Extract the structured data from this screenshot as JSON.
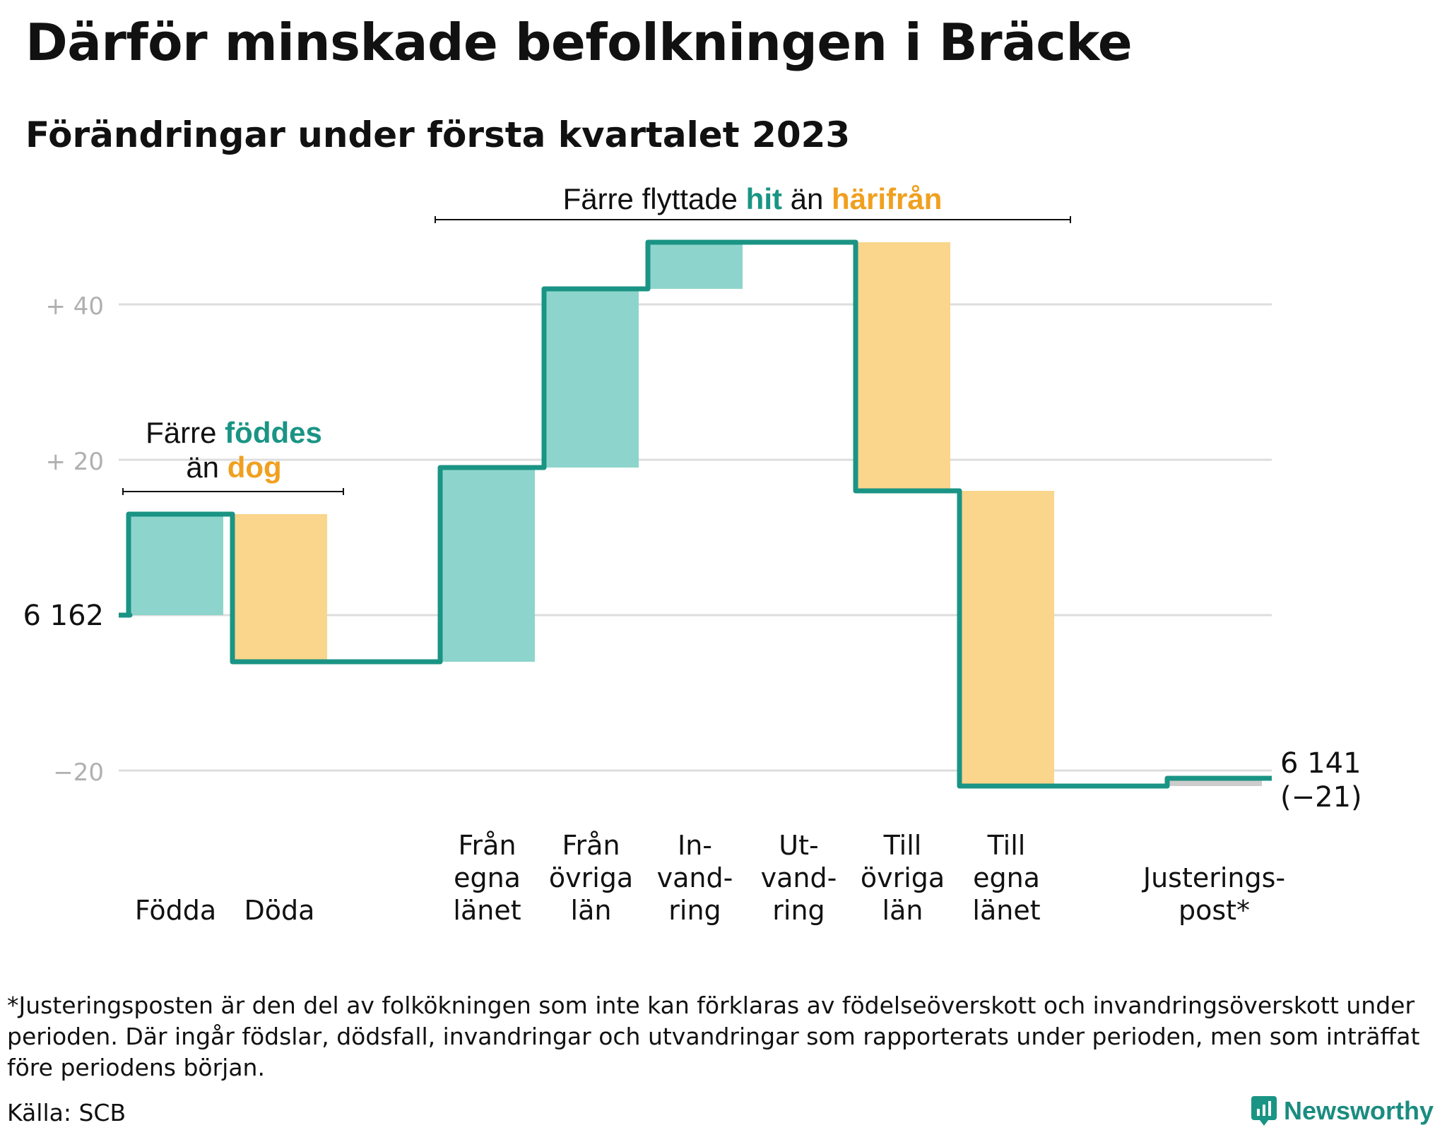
{
  "title": "Därför minskade befolkningen i Bräcke",
  "subtitle": "Förändringar under första kvartalet 2023",
  "colors": {
    "increase": "#8dd5cc",
    "decrease": "#fad58c",
    "adjustment": "#cccccc",
    "line": "#1a9484",
    "hit": "#1a9484",
    "harifran": "#f0a020",
    "grid": "#dddddd",
    "axis_text": "#b0b0b0"
  },
  "chart_data": {
    "type": "waterfall",
    "start": {
      "label": "6 162",
      "value": 0
    },
    "end": {
      "label": "6 141",
      "sublabel": "(−21)",
      "value": -21
    },
    "categories": [
      {
        "label": [
          "Födda"
        ],
        "change": 13,
        "kind": "increase"
      },
      {
        "label": [
          "Döda"
        ],
        "change": -19,
        "kind": "decrease"
      },
      {
        "label": [],
        "change": 0,
        "kind": "gap"
      },
      {
        "label": [
          "Från",
          "egna",
          "länet"
        ],
        "change": 25,
        "kind": "increase"
      },
      {
        "label": [
          "Från",
          "övriga",
          "län"
        ],
        "change": 23,
        "kind": "increase"
      },
      {
        "label": [
          "In-",
          "vand-",
          "ring"
        ],
        "change": 6,
        "kind": "increase"
      },
      {
        "label": [
          "Ut-",
          "vand-",
          "ring"
        ],
        "change": 0,
        "kind": "decrease"
      },
      {
        "label": [
          "Till",
          "övriga",
          "län"
        ],
        "change": -32,
        "kind": "decrease"
      },
      {
        "label": [
          "Till",
          "egna",
          "länet"
        ],
        "change": -38,
        "kind": "decrease"
      },
      {
        "label": [],
        "change": 0,
        "kind": "gap"
      },
      {
        "label": [
          "Justerings-",
          "post*"
        ],
        "change": 1,
        "kind": "adjustment"
      }
    ],
    "y_ticks": [
      {
        "value": 40,
        "label": "+ 40"
      },
      {
        "value": 20,
        "label": "+ 20"
      },
      {
        "value": 0,
        "label": "6 162"
      },
      {
        "value": -20,
        "label": "−20"
      }
    ],
    "ylim": [
      -28,
      49
    ],
    "grid": true,
    "annotations": [
      {
        "parts": [
          {
            "text": "Färre ",
            "color": "plain"
          },
          {
            "text": "föddes",
            "color": "hit"
          }
        ],
        "line2": [
          {
            "text": "än ",
            "color": "plain"
          },
          {
            "text": "dog",
            "color": "harifran"
          }
        ]
      },
      {
        "parts": [
          {
            "text": "Färre flyttade ",
            "color": "plain"
          },
          {
            "text": "hit",
            "color": "hit"
          },
          {
            "text": " än ",
            "color": "plain"
          },
          {
            "text": "härifrån",
            "color": "harifran"
          }
        ]
      }
    ]
  },
  "footnote": "*Justeringsposten är den del av folkökningen som inte kan förklaras av födelseöverskott och invandringsöverskott under perioden. Där ingår födslar, dödsfall, invandringar och utvandringar som rapporterats under perioden, men som inträffat före periodens början.",
  "source": "Källa: SCB",
  "brand": {
    "name": "Newsworthy",
    "icon": "newsworthy-logo-icon"
  }
}
